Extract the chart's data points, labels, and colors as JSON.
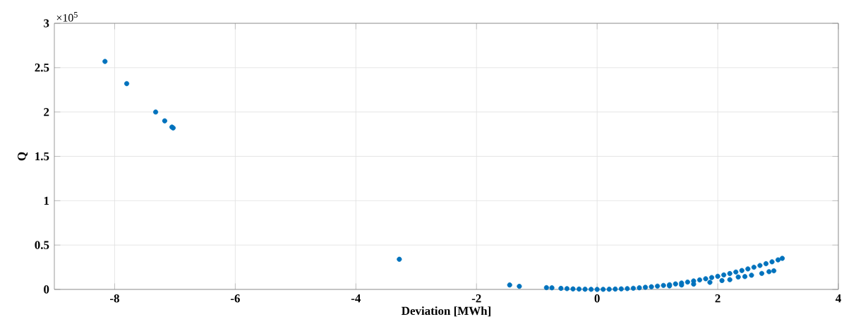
{
  "chart_data": {
    "type": "scatter",
    "xlabel": "Deviation [MWh]",
    "ylabel": "Q",
    "annotations": [
      "×10$^{5}$"
    ],
    "xlim": [
      -9,
      4
    ],
    "xticks": [
      -8,
      -6,
      -4,
      -2,
      0,
      2,
      4
    ],
    "ylim": [
      0,
      3
    ],
    "yticks": [
      0,
      0.5,
      1,
      1.5,
      2,
      2.5,
      3
    ],
    "grid": true,
    "series": [
      {
        "color": "#0072bd",
        "x": [
          -8.16,
          -7.8,
          -7.32,
          -7.17,
          -7.05,
          -7.03,
          -3.28,
          -1.45,
          -1.29,
          -0.84,
          -0.75,
          -0.6,
          -0.5,
          -0.4,
          -0.3,
          -0.2,
          -0.1,
          0,
          0.1,
          0.2,
          0.3,
          0.4,
          0.5,
          0.6,
          0.7,
          0.8,
          0.9,
          1.0,
          1.1,
          1.2,
          1.3,
          1.4,
          1.5,
          1.6,
          1.7,
          1.8,
          1.9,
          2.0,
          2.1,
          2.2,
          2.3,
          2.4,
          2.5,
          2.6,
          2.7,
          2.8,
          2.9,
          3.0,
          3.07,
          1.2,
          1.4,
          1.6,
          1.87,
          2.07,
          2.2,
          2.34,
          2.45,
          2.56,
          2.73,
          2.85,
          2.93
        ],
        "values": [
          2.57,
          2.32,
          2.0,
          1.9,
          1.83,
          1.82,
          0.34,
          0.05,
          0.035,
          0.02,
          0.018,
          0.012,
          0.009,
          0.006,
          0.004,
          0.002,
          0.001,
          0,
          0.001,
          0.002,
          0.004,
          0.006,
          0.009,
          0.013,
          0.018,
          0.024,
          0.03,
          0.037,
          0.045,
          0.053,
          0.062,
          0.072,
          0.083,
          0.095,
          0.107,
          0.12,
          0.134,
          0.148,
          0.163,
          0.179,
          0.196,
          0.213,
          0.231,
          0.25,
          0.27,
          0.29,
          0.311,
          0.333,
          0.35,
          0.04,
          0.05,
          0.06,
          0.08,
          0.1,
          0.11,
          0.14,
          0.145,
          0.16,
          0.18,
          0.2,
          0.21
        ]
      }
    ]
  }
}
